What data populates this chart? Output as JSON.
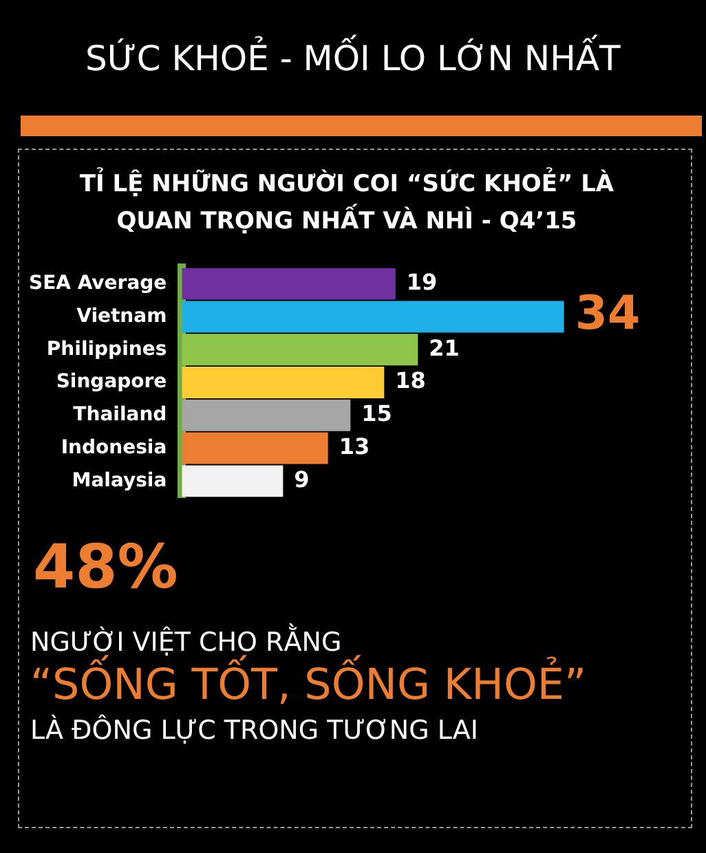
{
  "chart_data": {
    "type": "bar",
    "orientation": "horizontal",
    "title": "SỨC KHOẺ - MỐI LO LỚN NHẤT",
    "subtitle": "TỈ LỆ NHỮNG NGƯỜI COI “SỨC KHOẺ” LÀ QUAN TRỌNG NHẤT VÀ NHÌ - Q4’15",
    "categories": [
      "SEA Average",
      "Vietnam",
      "Philippines",
      "Singapore",
      "Thailand",
      "Indonesia",
      "Malaysia"
    ],
    "values": [
      19,
      34,
      21,
      18,
      15,
      13,
      9
    ],
    "colors": [
      "#7030a0",
      "#1fb0ea",
      "#8fc64a",
      "#ffcc33",
      "#a6a6a6",
      "#ed7d31",
      "#f2f2f2"
    ],
    "data_labels": true,
    "legend": false,
    "annotations": [
      "48%",
      "NGƯỜI VIỆT CHO RẰNG",
      "“SỐNG TỐT, SỐNG KHOẺ”",
      "LÀ ĐÔNG LỰC TRONG TƯƠNG LAI"
    ]
  }
}
